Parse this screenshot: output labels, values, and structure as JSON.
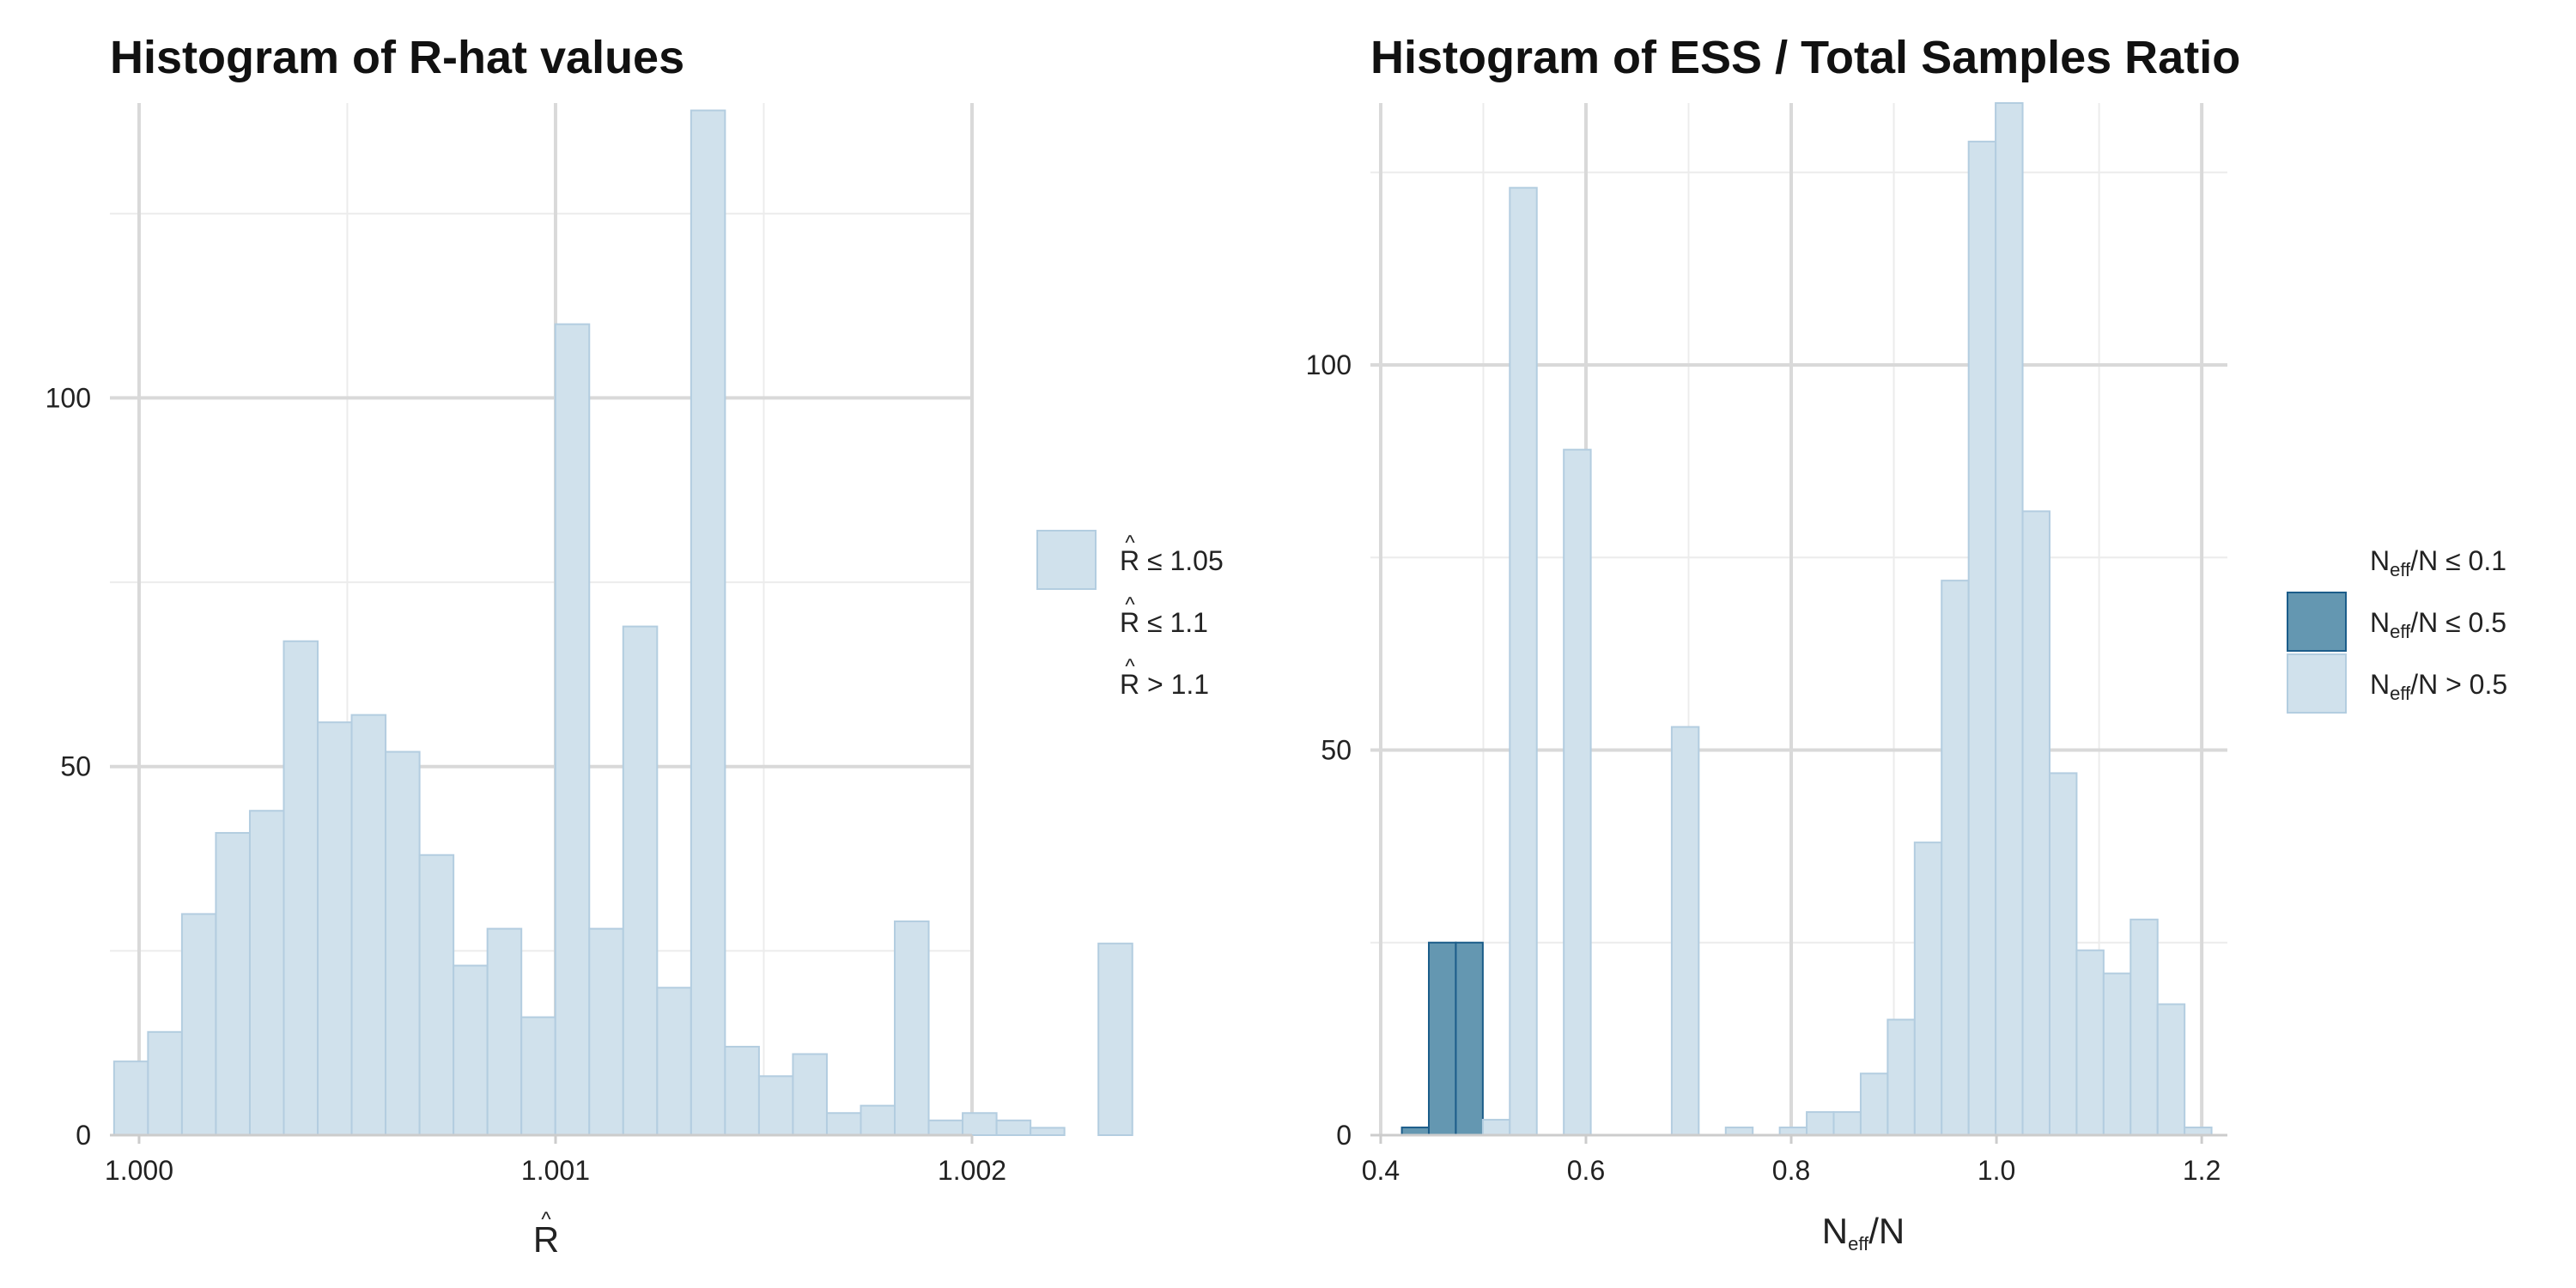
{
  "chart_data": [
    {
      "type": "bar",
      "title": "Histogram of R-hat values",
      "xlabel": "R",
      "xlabel_hat": "^",
      "ylabel": "",
      "xlim": [
        0.99993,
        1.002
      ],
      "ylim": [
        0,
        140
      ],
      "x_ticks": [
        1.0,
        1.001,
        1.002
      ],
      "x_tick_labels": [
        "1.000",
        "1.001",
        "1.002"
      ],
      "y_ticks": [
        0,
        50,
        100
      ],
      "y_tick_labels": [
        "0",
        "50",
        "100"
      ],
      "grid": true,
      "legend_position": "right",
      "bin_width": 8.15e-05,
      "bins_start": 0.99994,
      "values": [
        10,
        14,
        30,
        41,
        44,
        67,
        56,
        57,
        52,
        38,
        23,
        28,
        16,
        110,
        28,
        69,
        20,
        139,
        12,
        8,
        11,
        3,
        4,
        29,
        2,
        3,
        2,
        1,
        0,
        26
      ],
      "bin_category": [
        "ok",
        "ok",
        "ok",
        "ok",
        "ok",
        "ok",
        "ok",
        "ok",
        "ok",
        "ok",
        "ok",
        "ok",
        "ok",
        "ok",
        "ok",
        "ok",
        "ok",
        "ok",
        "ok",
        "ok",
        "ok",
        "ok",
        "ok",
        "ok",
        "ok",
        "ok",
        "ok",
        "ok",
        "ok",
        "ok"
      ],
      "legend": [
        {
          "hat": "^",
          "symbol": "R",
          "text": " ≤ 1.05",
          "color": "#d0e1ec",
          "stroke": "#b3cde0",
          "show_key": true
        },
        {
          "hat": "^",
          "symbol": "R",
          "text": " ≤ 1.1",
          "color": "",
          "stroke": "",
          "show_key": false
        },
        {
          "hat": "^",
          "symbol": "R",
          "text": " > 1.1",
          "color": "",
          "stroke": "",
          "show_key": false
        }
      ]
    },
    {
      "type": "bar",
      "title": "Histogram of ESS / Total Samples Ratio",
      "xlabel": "N",
      "xlabel_sub": "eff",
      "xlabel_suffix": "/N",
      "ylabel": "",
      "xlim": [
        0.39,
        1.225
      ],
      "ylim": [
        0,
        134
      ],
      "x_ticks": [
        0.4,
        0.6,
        0.8,
        1.0,
        1.2
      ],
      "x_tick_labels": [
        "0.4",
        "0.6",
        "0.8",
        "1.0",
        "1.2"
      ],
      "y_ticks": [
        0,
        50,
        100
      ],
      "y_tick_labels": [
        "0",
        "50",
        "100"
      ],
      "grid": true,
      "legend_position": "right",
      "bin_width": 0.0263,
      "bins_start": 0.4206,
      "values": [
        1,
        25,
        25,
        2,
        123,
        0,
        89,
        0,
        0,
        0,
        53,
        0,
        1,
        0,
        1,
        3,
        3,
        8,
        15,
        38,
        72,
        129,
        134,
        81,
        47,
        24,
        21,
        28,
        17,
        1
      ],
      "bin_category": [
        "mid",
        "mid",
        "mid",
        "ok",
        "ok",
        "ok",
        "ok",
        "ok",
        "ok",
        "ok",
        "ok",
        "ok",
        "ok",
        "ok",
        "ok",
        "ok",
        "ok",
        "ok",
        "ok",
        "ok",
        "ok",
        "ok",
        "ok",
        "ok",
        "ok",
        "ok",
        "ok",
        "ok",
        "ok",
        "ok"
      ],
      "legend": [
        {
          "symbol": "N",
          "sub": "eff",
          "text": "/N ≤ 0.1",
          "color": "",
          "stroke": "",
          "show_key": false
        },
        {
          "symbol": "N",
          "sub": "eff",
          "text": "/N ≤ 0.5",
          "color": "#6497b1",
          "stroke": "#1c5d8a",
          "show_key": true
        },
        {
          "symbol": "N",
          "sub": "eff",
          "text": "/N > 0.5",
          "color": "#d0e1ec",
          "stroke": "#b3cde0",
          "show_key": true
        }
      ]
    }
  ],
  "colors": {
    "ok_fill": "#d0e1ec",
    "ok_stroke": "#b3cde0",
    "mid_fill": "#6497b1",
    "mid_stroke": "#1c5d8a",
    "grid_major": "#d9d9d9",
    "grid_minor": "#ececec",
    "axis": "#cccccc"
  }
}
